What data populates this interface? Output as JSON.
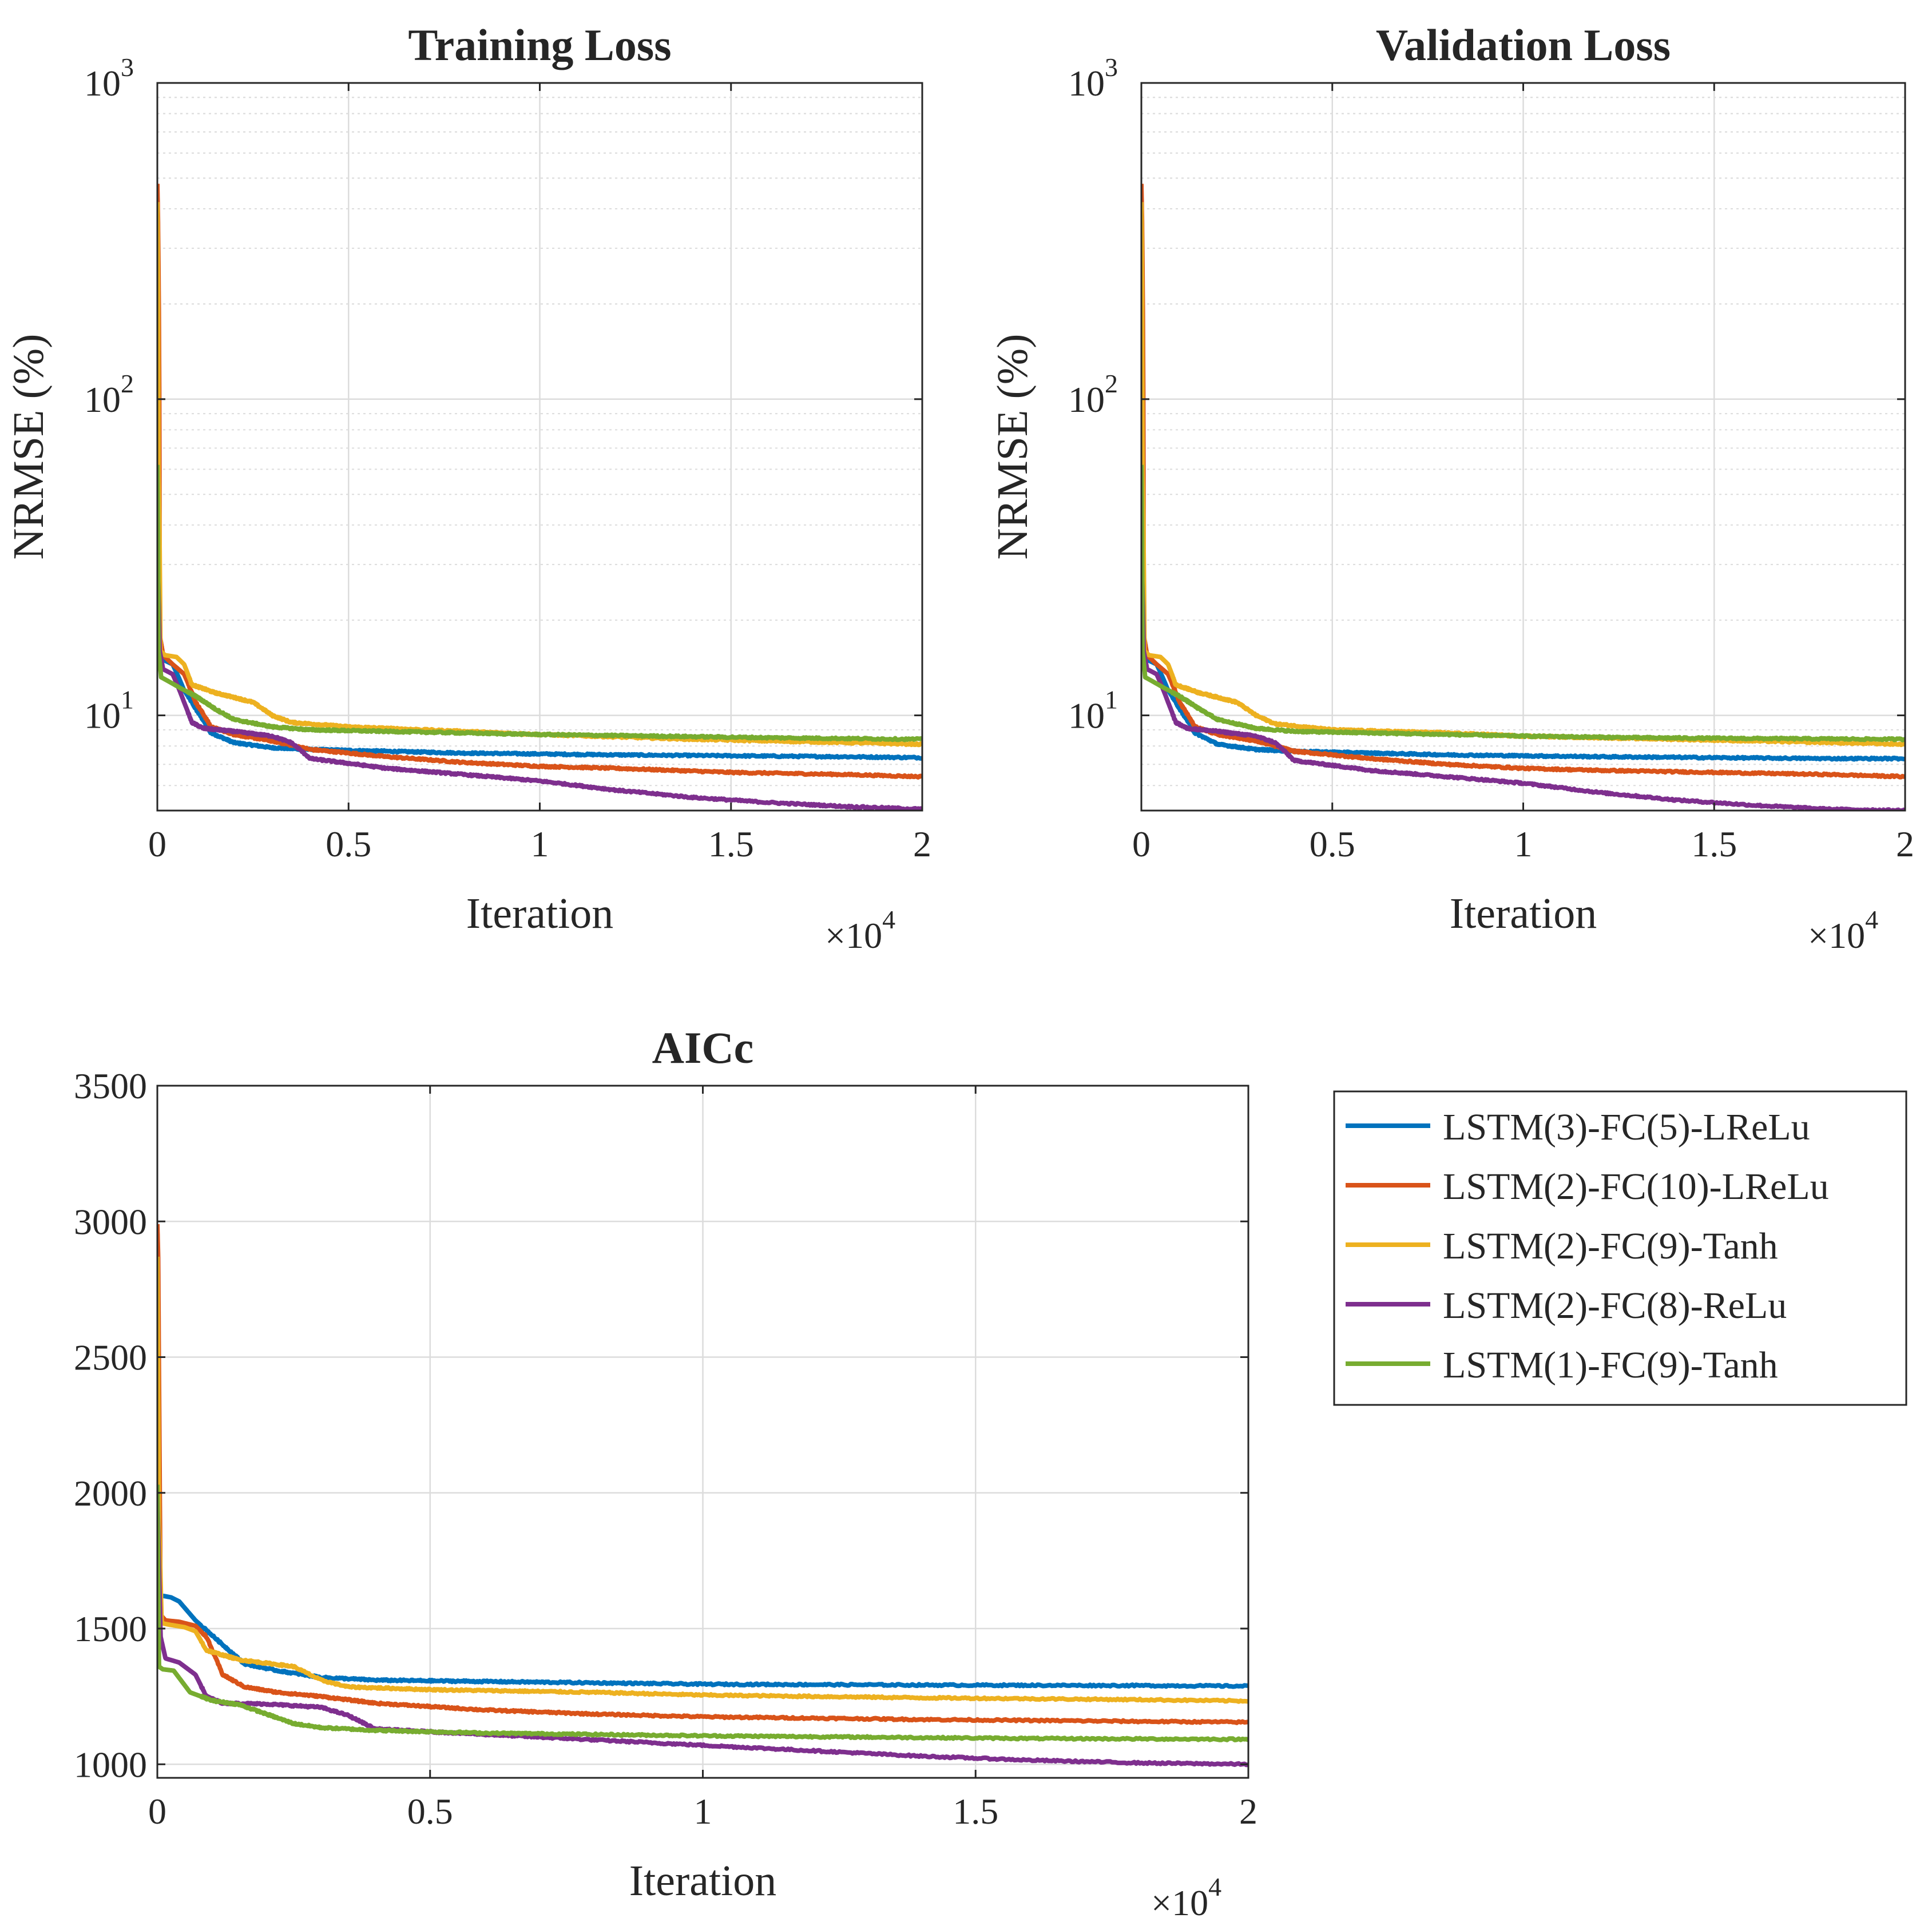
{
  "chart_data": [
    {
      "id": "training",
      "type": "line",
      "title": "Training Loss",
      "xlabel": "Iteration",
      "ylabel": "NRMSE (%)",
      "x_multiplier": "×10",
      "x_multiplier_exp": "4",
      "xlim": [
        0,
        20000
      ],
      "ylim": [
        5,
        1000
      ],
      "yscale": "log",
      "x_ticks": [
        0,
        5000,
        10000,
        15000,
        20000
      ],
      "x_tick_labels": [
        "0",
        "0.5",
        "1",
        "1.5",
        "2"
      ],
      "y_ticks": [
        10,
        100,
        1000
      ],
      "y_tick_base": "10",
      "y_tick_exps": [
        "1",
        "2",
        "3"
      ],
      "grid": true,
      "series": [
        {
          "name": "LSTM(3)-FC(5)-LReLu",
          "x": [
            0,
            60,
            150,
            400,
            700,
            1000,
            1400,
            2000,
            3000,
            4000,
            6000,
            8000,
            10000,
            12000,
            15000,
            18000,
            20000
          ],
          "y": [
            33,
            17,
            15,
            14.5,
            12,
            10.5,
            8.8,
            8.2,
            7.9,
            7.8,
            7.7,
            7.6,
            7.55,
            7.5,
            7.45,
            7.4,
            7.35
          ]
        },
        {
          "name": "LSTM(2)-FC(10)-LReLu",
          "x": [
            0,
            15,
            60,
            150,
            400,
            700,
            1000,
            1400,
            2000,
            3000,
            4000,
            6000,
            8000,
            10000,
            12000,
            15000,
            18000,
            20000
          ],
          "y": [
            480,
            380,
            18,
            15.5,
            14.5,
            13.5,
            11,
            9.2,
            8.7,
            8.3,
            7.8,
            7.4,
            7.1,
            6.9,
            6.8,
            6.6,
            6.5,
            6.4
          ]
        },
        {
          "name": "LSTM(2)-FC(9)-Tanh",
          "x": [
            0,
            30,
            80,
            200,
            500,
            700,
            900,
            1500,
            2500,
            3000,
            3500,
            5000,
            8000,
            10000,
            14000,
            18000,
            20000
          ],
          "y": [
            420,
            60,
            16,
            15.5,
            15.3,
            14.5,
            12.5,
            11.8,
            11,
            10,
            9.5,
            9.2,
            8.9,
            8.7,
            8.4,
            8.2,
            8.1
          ]
        },
        {
          "name": "LSTM(2)-FC(8)-ReLu",
          "x": [
            0,
            60,
            150,
            400,
            700,
            900,
            1200,
            2000,
            3000,
            3500,
            4000,
            6000,
            8000,
            10000,
            12000,
            14000,
            16000,
            18000,
            20000
          ],
          "y": [
            33,
            16,
            14,
            13.5,
            11,
            9.5,
            9.1,
            8.9,
            8.6,
            8.2,
            7.3,
            6.8,
            6.5,
            6.2,
            5.8,
            5.5,
            5.3,
            5.15,
            5.05
          ]
        },
        {
          "name": "LSTM(1)-FC(9)-Tanh",
          "x": [
            0,
            30,
            100,
            300,
            600,
            1000,
            1500,
            2000,
            3000,
            4000,
            6000,
            8000,
            10000,
            13000,
            16000,
            20000
          ],
          "y": [
            62,
            16,
            13.2,
            12.8,
            12.2,
            11.5,
            10.5,
            9.7,
            9.2,
            9.0,
            8.9,
            8.8,
            8.7,
            8.6,
            8.5,
            8.4
          ]
        }
      ]
    },
    {
      "id": "validation",
      "type": "line",
      "title": "Validation Loss",
      "xlabel": "Iteration",
      "ylabel": "NRMSE (%)",
      "x_multiplier": "×10",
      "x_multiplier_exp": "4",
      "xlim": [
        0,
        20000
      ],
      "ylim": [
        5,
        1000
      ],
      "yscale": "log",
      "x_ticks": [
        0,
        5000,
        10000,
        15000,
        20000
      ],
      "x_tick_labels": [
        "0",
        "0.5",
        "1",
        "1.5",
        "2"
      ],
      "y_ticks": [
        10,
        100,
        1000
      ],
      "y_tick_base": "10",
      "y_tick_exps": [
        "1",
        "2",
        "3"
      ],
      "grid": true,
      "series": [
        {
          "name": "LSTM(3)-FC(5)-LReLu",
          "x": [
            0,
            60,
            150,
            400,
            700,
            1000,
            1400,
            2000,
            3000,
            4000,
            6000,
            8000,
            10000,
            12000,
            15000,
            18000,
            20000
          ],
          "y": [
            33,
            17,
            15,
            14.5,
            12,
            10.5,
            8.8,
            8.1,
            7.8,
            7.7,
            7.6,
            7.5,
            7.45,
            7.4,
            7.35,
            7.3,
            7.3
          ]
        },
        {
          "name": "LSTM(2)-FC(10)-LReLu",
          "x": [
            0,
            15,
            60,
            150,
            400,
            700,
            1000,
            1400,
            2000,
            3000,
            4000,
            6000,
            8000,
            10000,
            12000,
            15000,
            18000,
            20000
          ],
          "y": [
            480,
            380,
            18,
            15.5,
            14.5,
            13.5,
            11,
            9.2,
            8.7,
            8.3,
            7.7,
            7.3,
            7.0,
            6.8,
            6.7,
            6.6,
            6.5,
            6.4
          ]
        },
        {
          "name": "LSTM(2)-FC(9)-Tanh",
          "x": [
            0,
            30,
            80,
            200,
            500,
            700,
            900,
            1500,
            2500,
            3000,
            3500,
            5000,
            8000,
            10000,
            14000,
            18000,
            20000
          ],
          "y": [
            420,
            60,
            16,
            15.5,
            15.3,
            14.5,
            12.5,
            11.8,
            11,
            10,
            9.4,
            9.0,
            8.8,
            8.6,
            8.4,
            8.2,
            8.1
          ]
        },
        {
          "name": "LSTM(2)-FC(8)-ReLu",
          "x": [
            0,
            60,
            150,
            400,
            700,
            900,
            1200,
            2000,
            3000,
            3500,
            4000,
            6000,
            8000,
            10000,
            12000,
            14000,
            16000,
            18000,
            20000
          ],
          "y": [
            33,
            16,
            14,
            13.5,
            11,
            9.5,
            9.1,
            8.9,
            8.6,
            8.2,
            7.2,
            6.7,
            6.4,
            6.1,
            5.7,
            5.4,
            5.2,
            5.05,
            5.0
          ]
        },
        {
          "name": "LSTM(1)-FC(9)-Tanh",
          "x": [
            0,
            30,
            100,
            300,
            600,
            1000,
            1500,
            2000,
            3000,
            4000,
            6000,
            8000,
            10000,
            13000,
            16000,
            20000
          ],
          "y": [
            62,
            16,
            13.2,
            12.8,
            12.2,
            11.5,
            10.5,
            9.7,
            9.1,
            8.9,
            8.8,
            8.7,
            8.6,
            8.5,
            8.45,
            8.4
          ]
        }
      ]
    },
    {
      "id": "aicc",
      "type": "line",
      "title": "AICc",
      "xlabel": "Iteration",
      "ylabel": "",
      "x_multiplier": "×10",
      "x_multiplier_exp": "4",
      "xlim": [
        0,
        20000
      ],
      "ylim": [
        950,
        3500
      ],
      "yscale": "linear",
      "x_ticks": [
        0,
        5000,
        10000,
        15000,
        20000
      ],
      "x_tick_labels": [
        "0",
        "0.5",
        "1",
        "1.5",
        "2"
      ],
      "y_ticks": [
        1000,
        1500,
        2000,
        2500,
        3000,
        3500
      ],
      "y_tick_labels": [
        "1000",
        "1500",
        "2000",
        "2500",
        "3000",
        "3500"
      ],
      "grid": true,
      "series": [
        {
          "name": "LSTM(3)-FC(5)-LReLu",
          "x": [
            0,
            50,
            120,
            250,
            400,
            700,
            1200,
            1600,
            2200,
            3000,
            4000,
            6000,
            8000,
            10000,
            14000,
            18000,
            20000
          ],
          "y": [
            2100,
            1620,
            1620,
            1615,
            1600,
            1530,
            1440,
            1370,
            1345,
            1320,
            1310,
            1305,
            1300,
            1295,
            1292,
            1290,
            1288
          ]
        },
        {
          "name": "LSTM(2)-FC(10)-LReLu",
          "x": [
            0,
            15,
            60,
            150,
            400,
            700,
            900,
            1200,
            1600,
            2200,
            3000,
            4000,
            6000,
            8000,
            10000,
            14000,
            18000,
            20000
          ],
          "y": [
            2990,
            2870,
            1550,
            1530,
            1525,
            1510,
            1470,
            1330,
            1285,
            1265,
            1250,
            1225,
            1200,
            1185,
            1175,
            1165,
            1158,
            1155
          ]
        },
        {
          "name": "LSTM(2)-FC(9)-Tanh",
          "x": [
            0,
            30,
            80,
            200,
            500,
            700,
            900,
            1500,
            2500,
            3000,
            3500,
            5000,
            8000,
            10000,
            14000,
            18000,
            20000
          ],
          "y": [
            2870,
            1900,
            1520,
            1515,
            1505,
            1490,
            1420,
            1385,
            1360,
            1310,
            1285,
            1275,
            1265,
            1255,
            1245,
            1238,
            1233
          ]
        },
        {
          "name": "LSTM(2)-FC(8)-ReLu",
          "x": [
            0,
            60,
            150,
            400,
            700,
            900,
            1200,
            2000,
            3000,
            3500,
            4000,
            6000,
            8000,
            10000,
            12000,
            14000,
            16000,
            18000,
            20000
          ],
          "y": [
            2000,
            1470,
            1390,
            1375,
            1330,
            1250,
            1225,
            1222,
            1210,
            1180,
            1130,
            1110,
            1090,
            1070,
            1050,
            1030,
            1015,
            1005,
            1000
          ]
        },
        {
          "name": "LSTM(1)-FC(9)-Tanh",
          "x": [
            0,
            30,
            100,
            300,
            600,
            1000,
            1500,
            2000,
            2500,
            3000,
            4000,
            6000,
            8000,
            10000,
            13000,
            16000,
            20000
          ],
          "y": [
            2030,
            1360,
            1350,
            1345,
            1265,
            1235,
            1220,
            1185,
            1150,
            1135,
            1125,
            1115,
            1110,
            1105,
            1100,
            1095,
            1092
          ]
        }
      ]
    }
  ],
  "legend": {
    "placement": "right of AICc panel",
    "entries": [
      {
        "label": "LSTM(3)-FC(5)-LReLu",
        "color": "#0072BD"
      },
      {
        "label": "LSTM(2)-FC(10)-LReLu",
        "color": "#D95319"
      },
      {
        "label": "LSTM(2)-FC(9)-Tanh",
        "color": "#EDB120"
      },
      {
        "label": "LSTM(2)-FC(8)-ReLu",
        "color": "#7E2F8E"
      },
      {
        "label": "LSTM(1)-FC(9)-Tanh",
        "color": "#77AC30"
      }
    ]
  }
}
